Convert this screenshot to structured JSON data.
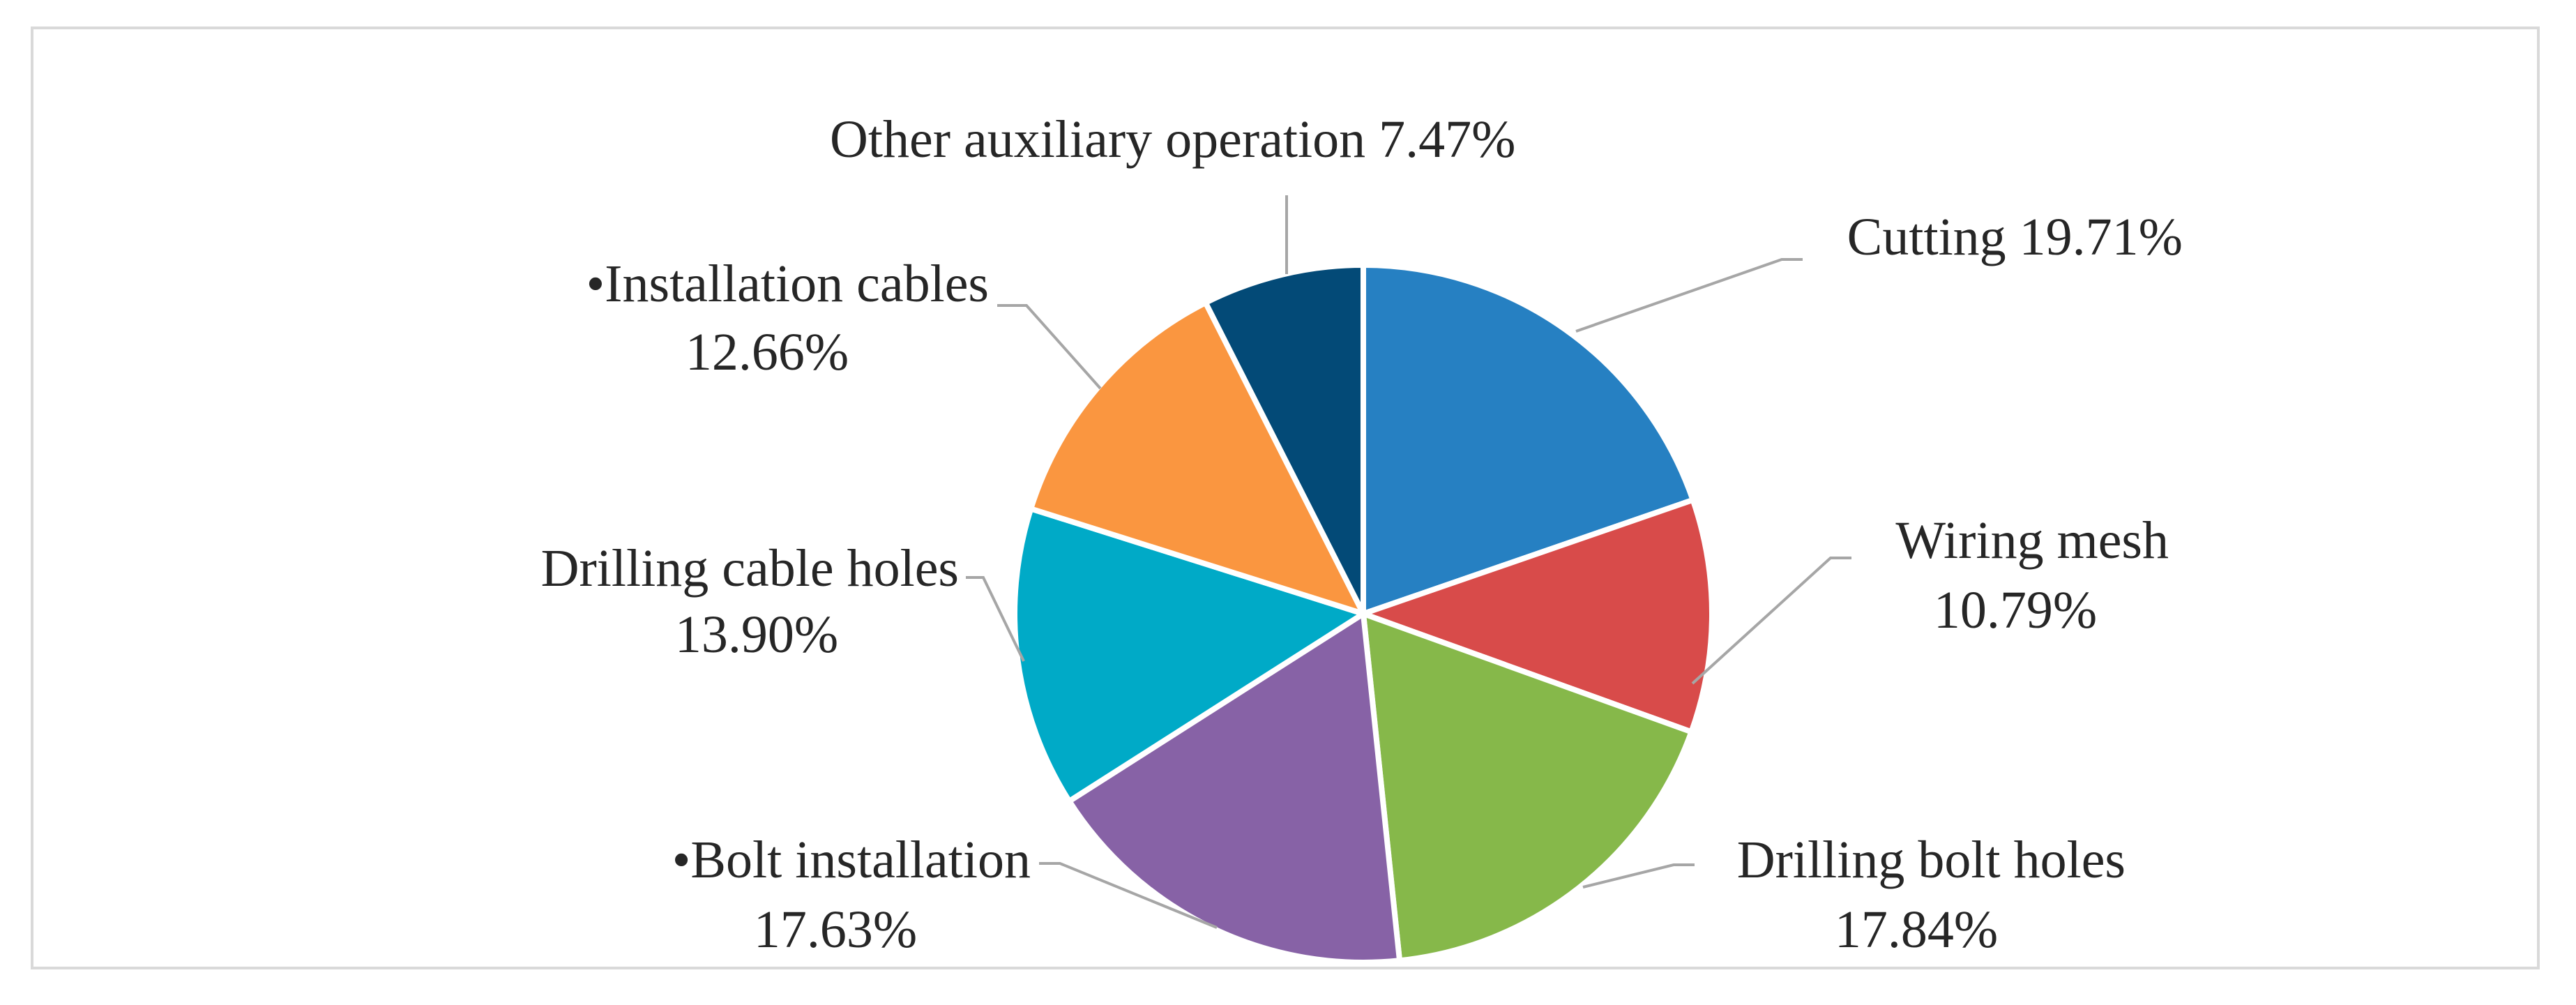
{
  "chart_data": {
    "type": "pie",
    "start_angle_deg": 0,
    "direction": "clockwise",
    "slices": [
      {
        "label": "Cutting",
        "value": 19.71,
        "value_text": "19.71%",
        "color": "#2680c2"
      },
      {
        "label": "Wiring mesh",
        "value": 10.79,
        "value_text": "10.79%",
        "color": "#d84b4a"
      },
      {
        "label": "Drilling bolt holes",
        "value": 17.84,
        "value_text": "17.84%",
        "color": "#86b84a"
      },
      {
        "label": "•Bolt installation",
        "value": 17.63,
        "value_text": "17.63%",
        "color": "#8762a6"
      },
      {
        "label": "Drilling cable holes",
        "value": 13.9,
        "value_text": "13.90%",
        "color": "#00aac7"
      },
      {
        "label": "•Installation cables",
        "value": 12.66,
        "value_text": "12.66%",
        "color": "#fa9640"
      },
      {
        "label": "Other auxiliary operation",
        "value": 7.47,
        "value_text": "7.47%",
        "color": "#034a77"
      }
    ]
  }
}
